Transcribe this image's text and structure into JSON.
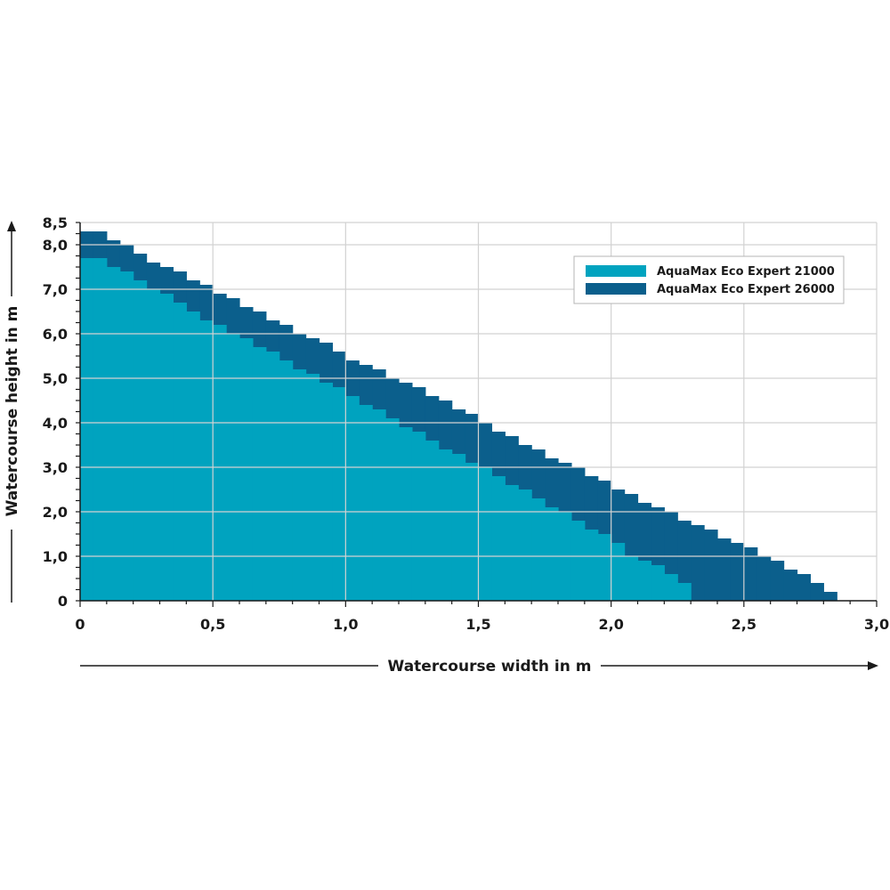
{
  "chart_data": {
    "type": "area",
    "xlabel": "Watercourse width in m",
    "ylabel": "Watercourse height in m",
    "xlim": [
      0,
      3.0
    ],
    "ylim": [
      0,
      8.5
    ],
    "x_ticks": [
      {
        "value": 0,
        "label": "0"
      },
      {
        "value": 0.5,
        "label": "0,5"
      },
      {
        "value": 1.0,
        "label": "1,0"
      },
      {
        "value": 1.5,
        "label": "1,5"
      },
      {
        "value": 2.0,
        "label": "2,0"
      },
      {
        "value": 2.5,
        "label": "2,5"
      },
      {
        "value": 3.0,
        "label": "3,0"
      }
    ],
    "y_ticks": [
      {
        "value": 0,
        "label": "0"
      },
      {
        "value": 1.0,
        "label": "1,0"
      },
      {
        "value": 2.0,
        "label": "2,0"
      },
      {
        "value": 3.0,
        "label": "3,0"
      },
      {
        "value": 4.0,
        "label": "4,0"
      },
      {
        "value": 5.0,
        "label": "5,0"
      },
      {
        "value": 6.0,
        "label": "6,0"
      },
      {
        "value": 7.0,
        "label": "7,0"
      },
      {
        "value": 8.0,
        "label": "8,0"
      },
      {
        "value": 8.5,
        "label": "8,5"
      }
    ],
    "grid": true,
    "legend": {
      "placement": "top-right"
    },
    "step": 0.05,
    "series": [
      {
        "name": "AquaMax Eco Expert 26000",
        "color": "#0b5f8c",
        "x": [
          0,
          0.05,
          0.1,
          0.15,
          0.2,
          0.25,
          0.3,
          0.35,
          0.4,
          0.45,
          0.5,
          0.55,
          0.6,
          0.65,
          0.7,
          0.75,
          0.8,
          0.85,
          0.9,
          0.95,
          1.0,
          1.05,
          1.1,
          1.15,
          1.2,
          1.25,
          1.3,
          1.35,
          1.4,
          1.45,
          1.5,
          1.55,
          1.6,
          1.65,
          1.7,
          1.75,
          1.8,
          1.85,
          1.9,
          1.95,
          2.0,
          2.05,
          2.1,
          2.15,
          2.2,
          2.25,
          2.3,
          2.35,
          2.4,
          2.45,
          2.5,
          2.55,
          2.6,
          2.65,
          2.7,
          2.75,
          2.8
        ],
        "y": [
          8.3,
          8.3,
          8.1,
          8.0,
          7.8,
          7.6,
          7.5,
          7.4,
          7.2,
          7.1,
          6.9,
          6.8,
          6.6,
          6.5,
          6.3,
          6.2,
          6.0,
          5.9,
          5.8,
          5.6,
          5.4,
          5.3,
          5.2,
          5.0,
          4.9,
          4.8,
          4.6,
          4.5,
          4.3,
          4.2,
          4.0,
          3.8,
          3.7,
          3.5,
          3.4,
          3.2,
          3.1,
          3.0,
          2.8,
          2.7,
          2.5,
          2.4,
          2.2,
          2.1,
          2.0,
          1.8,
          1.7,
          1.6,
          1.4,
          1.3,
          1.2,
          1.0,
          0.9,
          0.7,
          0.6,
          0.4,
          0.2
        ]
      },
      {
        "name": "AquaMax Eco Expert 21000",
        "color": "#00a3bf",
        "x": [
          0,
          0.05,
          0.1,
          0.15,
          0.2,
          0.25,
          0.3,
          0.35,
          0.4,
          0.45,
          0.5,
          0.55,
          0.6,
          0.65,
          0.7,
          0.75,
          0.8,
          0.85,
          0.9,
          0.95,
          1.0,
          1.05,
          1.1,
          1.15,
          1.2,
          1.25,
          1.3,
          1.35,
          1.4,
          1.45,
          1.5,
          1.55,
          1.6,
          1.65,
          1.7,
          1.75,
          1.8,
          1.85,
          1.9,
          1.95,
          2.0,
          2.05,
          2.1,
          2.15,
          2.2,
          2.25
        ],
        "y": [
          7.7,
          7.7,
          7.5,
          7.4,
          7.2,
          7.0,
          6.9,
          6.7,
          6.5,
          6.3,
          6.2,
          6.0,
          5.9,
          5.7,
          5.6,
          5.4,
          5.2,
          5.1,
          4.9,
          4.8,
          4.6,
          4.4,
          4.3,
          4.1,
          3.9,
          3.8,
          3.6,
          3.4,
          3.3,
          3.1,
          3.0,
          2.8,
          2.6,
          2.5,
          2.3,
          2.1,
          2.0,
          1.8,
          1.6,
          1.5,
          1.3,
          1.0,
          0.9,
          0.8,
          0.6,
          0.4
        ]
      }
    ]
  }
}
